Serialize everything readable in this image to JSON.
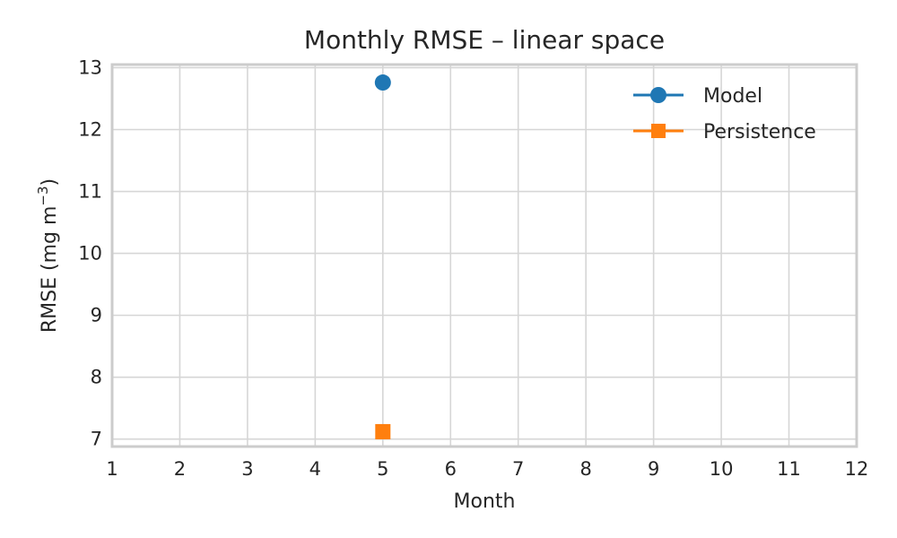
{
  "chart_data": {
    "type": "line",
    "title": "Monthly RMSE – linear space",
    "xlabel": "Month",
    "ylabel_main": "RMSE (mg m",
    "ylabel_sup": "−3",
    "ylabel_end": ")",
    "xlim": [
      1,
      12
    ],
    "ylim": [
      6.88,
      13.05
    ],
    "x_ticks": [
      "1",
      "2",
      "3",
      "4",
      "5",
      "6",
      "7",
      "8",
      "9",
      "10",
      "11",
      "12"
    ],
    "y_ticks": [
      "7",
      "8",
      "9",
      "10",
      "11",
      "12",
      "13"
    ],
    "grid": true,
    "legend_position": "top-right",
    "series": [
      {
        "name": "Model",
        "color": "#1f77b4",
        "marker": "circle",
        "x": [
          5
        ],
        "y": [
          12.76
        ]
      },
      {
        "name": "Persistence",
        "color": "#ff7f0e",
        "marker": "square",
        "x": [
          5
        ],
        "y": [
          7.12
        ]
      }
    ]
  }
}
